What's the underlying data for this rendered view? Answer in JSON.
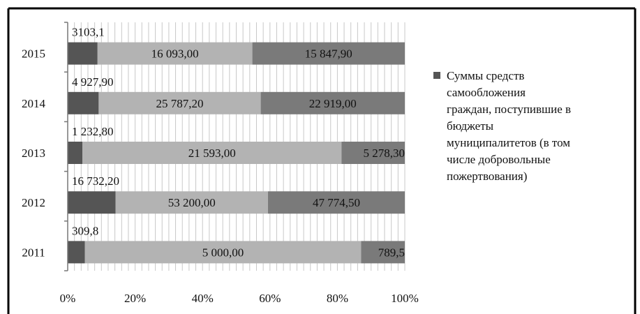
{
  "chart_data": {
    "type": "bar",
    "orientation": "horizontal",
    "stacked": "percent",
    "categories": [
      "2015",
      "2014",
      "2013",
      "2012",
      "2011"
    ],
    "series": [
      {
        "name": "",
        "color": "#555555",
        "values": [
          3103.1,
          4927.9,
          1232.8,
          16732.2,
          309.8
        ],
        "labels": [
          "3103,1",
          "4 927,90",
          "1 232,80",
          "16 732,20",
          "309,8"
        ]
      },
      {
        "name": "",
        "color": "#b3b3b3",
        "values": [
          16093.0,
          25787.2,
          21593.0,
          53200.0,
          5000.0
        ],
        "labels": [
          "16 093,00",
          "25 787,20",
          "21 593,00",
          "53 200,00",
          "5 000,00"
        ]
      },
      {
        "name": "Суммы средств самообложения граждан, поступившие в бюджеты муниципалитетов (в том числе добровольные пожертвования)",
        "color": "#7a7a7a",
        "values": [
          15847.9,
          22919.0,
          5278.3,
          47774.5,
          789.5
        ],
        "labels": [
          "15 847,90",
          "22 919,00",
          "5 278,30",
          "47 774,50",
          "789,5"
        ]
      }
    ],
    "x_ticks": [
      "0%",
      "20%",
      "40%",
      "60%",
      "80%",
      "100%"
    ],
    "xlim": [
      0,
      100
    ],
    "grid": true,
    "legend_position": "right",
    "legend": {
      "marker_color": "#555555",
      "lines": [
        "Суммы средств",
        "самообложения",
        "граждан, поступившие в",
        "бюджеты",
        "муниципалитетов (в том",
        "числе добровольные",
        "пожертвования)"
      ]
    }
  }
}
